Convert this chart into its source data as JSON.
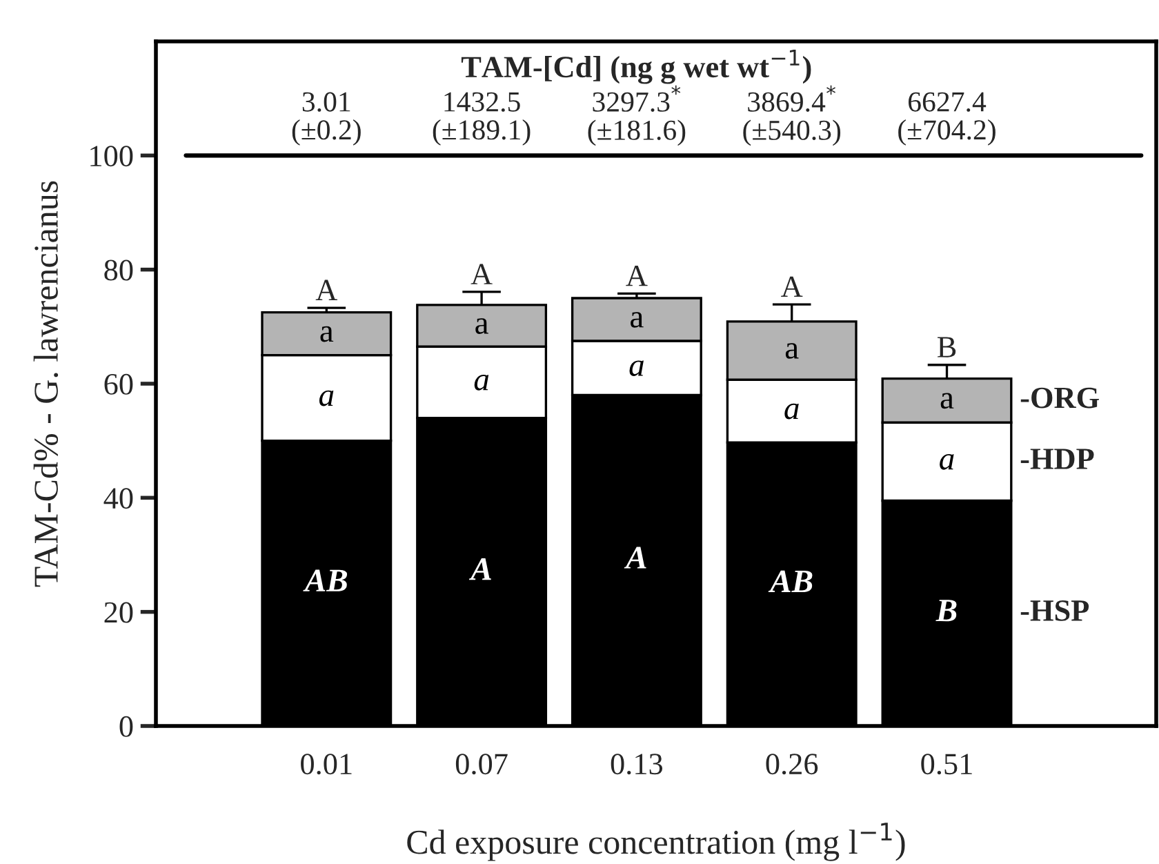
{
  "chart_data": {
    "type": "bar",
    "stacked": true,
    "legend": "right",
    "grid": false,
    "xlabel": "Cd exposure concentration (mg l$^{−1}$)",
    "ylabel": "TAM-Cd% - G. lawrencianus",
    "categories": [
      "0.01",
      "0.07",
      "0.13",
      "0.26",
      "0.51"
    ],
    "series": [
      {
        "name": "-HSP",
        "color": "#000000",
        "values": [
          50,
          54,
          58,
          49.7,
          39.5
        ],
        "value_labels": [
          "AB",
          "A",
          "A",
          "AB",
          "B"
        ]
      },
      {
        "name": "-HDP",
        "color": "#ffffff",
        "values": [
          15,
          12.5,
          9.5,
          11,
          13.7
        ],
        "value_labels": [
          "a",
          "a",
          "a",
          "a",
          "a"
        ]
      },
      {
        "name": "-ORG",
        "color": "#b4b4b4",
        "values": [
          7.5,
          7.3,
          7.5,
          10.2,
          7.7
        ],
        "value_labels": [
          "a",
          "a",
          "a",
          "a",
          "a"
        ],
        "errors": [
          0.8,
          2.3,
          0.8,
          3,
          2.4
        ]
      }
    ],
    "ylim": [
      0,
      120
    ],
    "yticks": [
      0,
      20,
      40,
      60,
      80,
      100
    ],
    "ref_lines": [
      {
        "axis": "y",
        "value": 100,
        "color": "#000000"
      }
    ],
    "annotations": [
      "A",
      "A",
      "A",
      "A",
      "B",
      "TAM-[Cd] (ng g wet wt$^{−1}$)",
      "3.01\n(±0.2)",
      "1432.5\n(±189.1)",
      "3297.3$^{*}$\n(±181.6)",
      "3869.4$^{*}$\n(±540.3)",
      "6627.4\n(±704.2)"
    ]
  }
}
